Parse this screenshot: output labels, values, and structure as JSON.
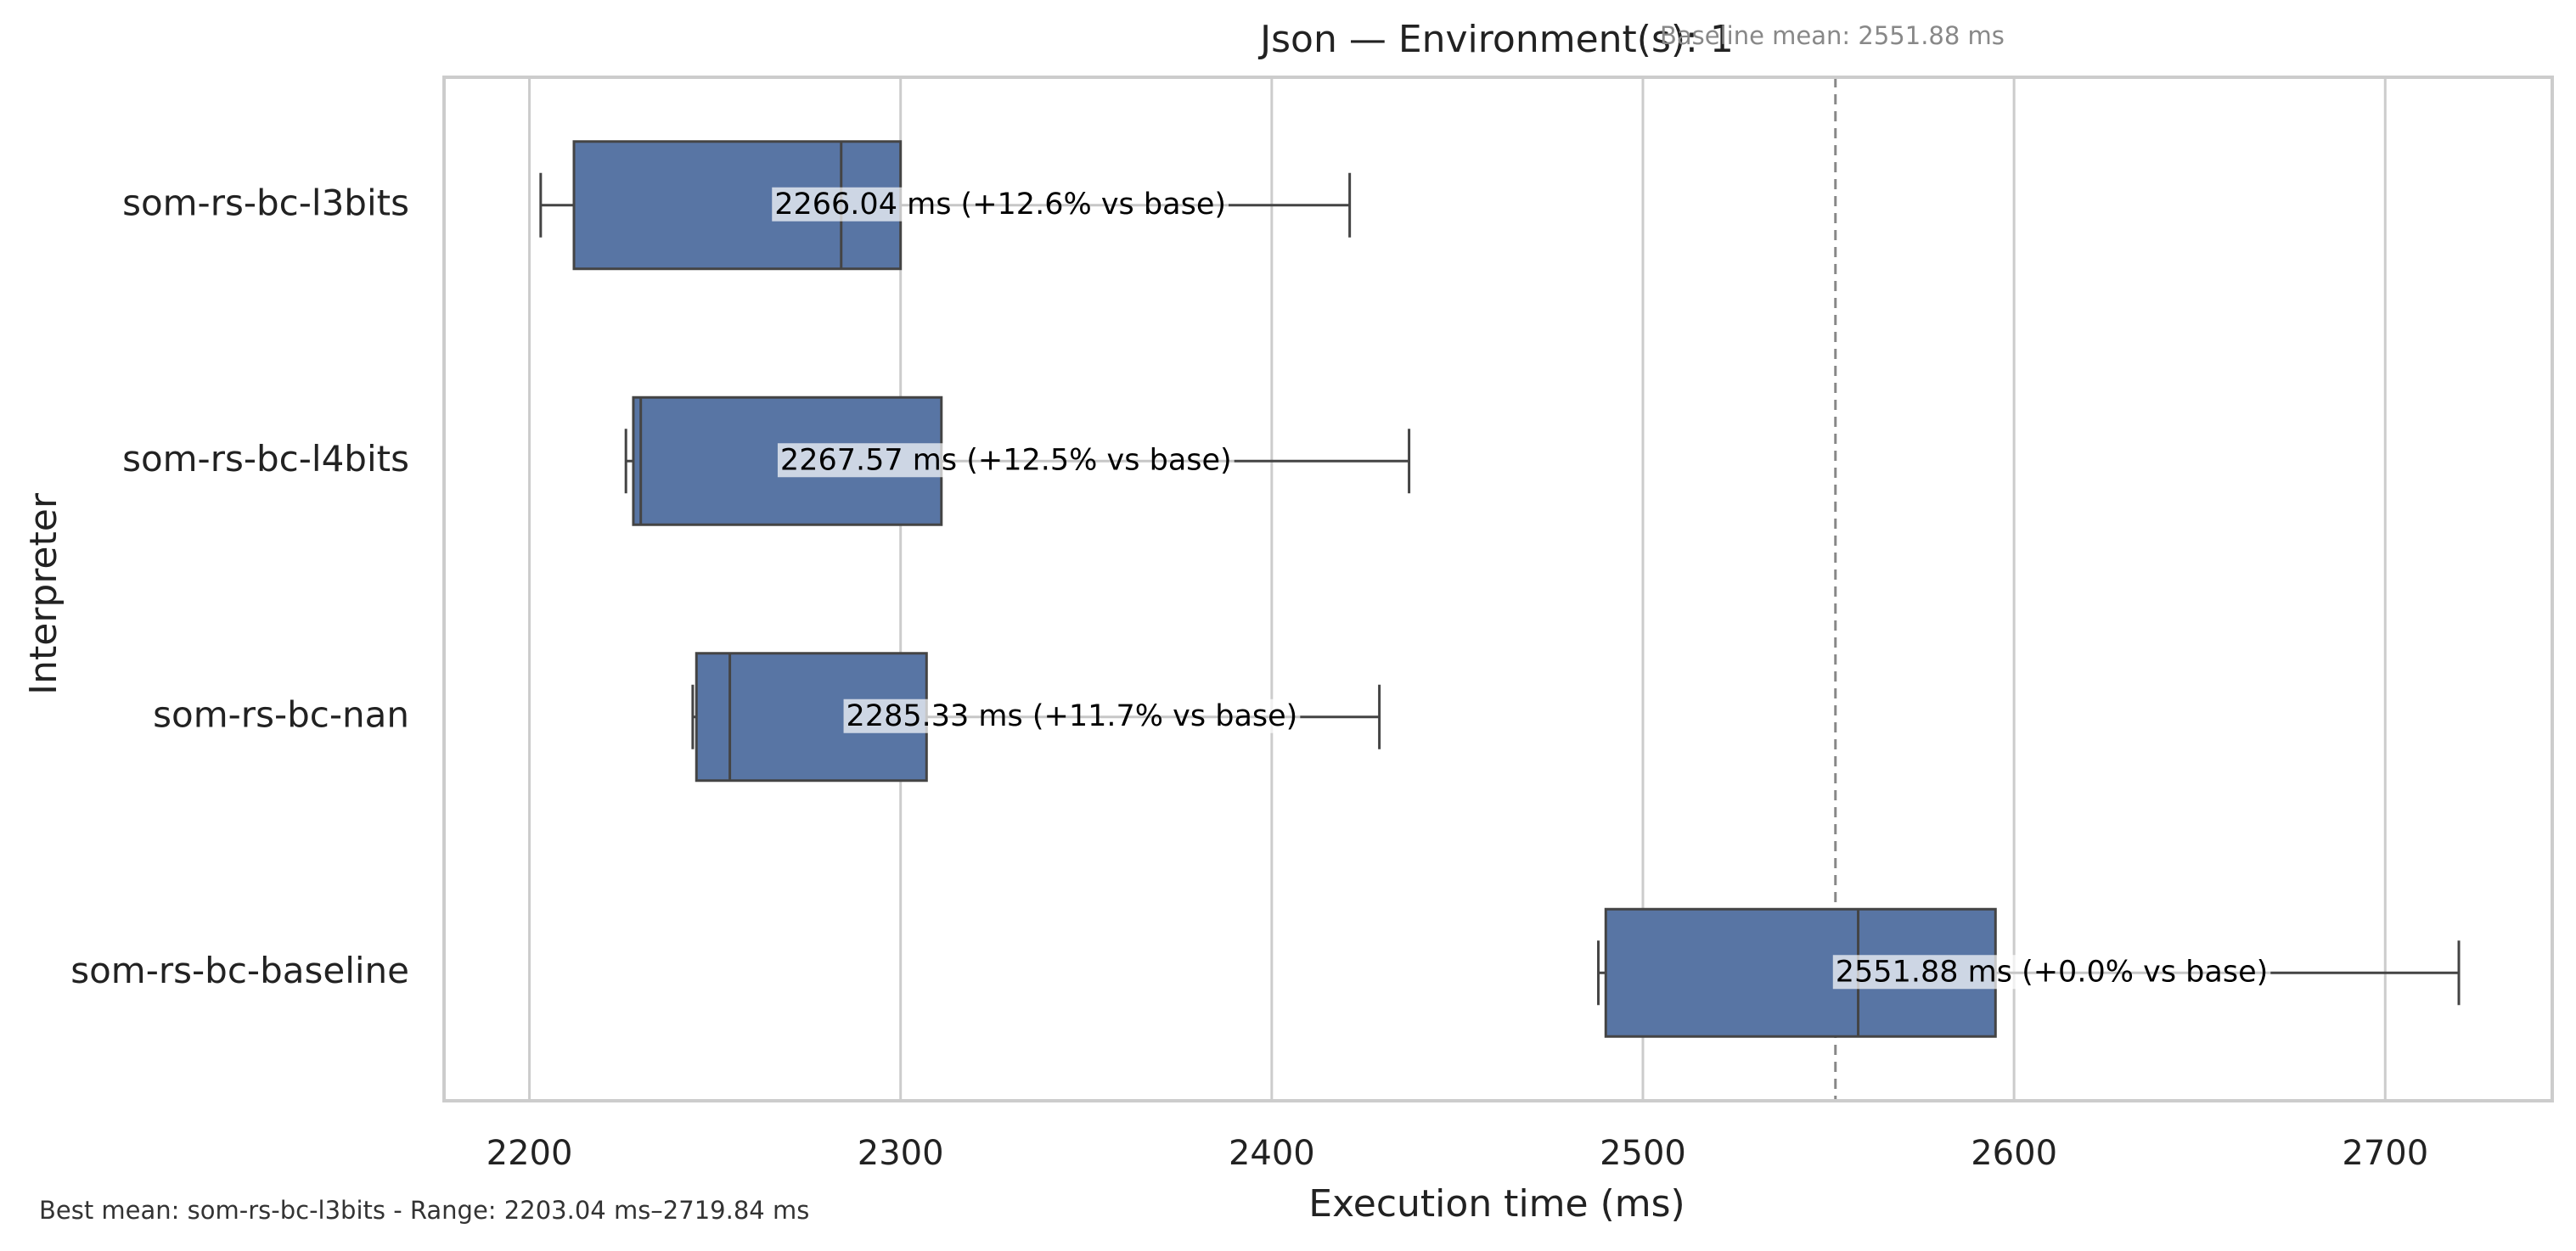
{
  "chart_data": {
    "type": "boxplot",
    "orientation": "horizontal",
    "title": "Json — Environment(s): 1",
    "xlabel": "Execution time (ms)",
    "ylabel": "Interpreter",
    "xlim": [
      2177,
      2745
    ],
    "xticks": [
      2200,
      2300,
      2400,
      2500,
      2600,
      2700
    ],
    "grid": "vertical",
    "categories": [
      "som-rs-bc-l3bits",
      "som-rs-bc-l4bits",
      "som-rs-bc-nan",
      "som-rs-bc-baseline"
    ],
    "boxes": [
      {
        "name": "som-rs-bc-l3bits",
        "whisker_low": 2203.04,
        "q1": 2212,
        "median": 2284,
        "q3": 2300,
        "whisker_high": 2421,
        "annotation": "2266.04 ms  (+12.6% vs base)"
      },
      {
        "name": "som-rs-bc-l4bits",
        "whisker_low": 2226,
        "q1": 2228,
        "median": 2230,
        "q3": 2311,
        "whisker_high": 2437,
        "annotation": "2267.57 ms  (+12.5% vs base)"
      },
      {
        "name": "som-rs-bc-nan",
        "whisker_low": 2244,
        "q1": 2245,
        "median": 2254,
        "q3": 2307,
        "whisker_high": 2429,
        "annotation": "2285.33 ms  (+11.7% vs base)"
      },
      {
        "name": "som-rs-bc-baseline",
        "whisker_low": 2488,
        "q1": 2490,
        "median": 2558,
        "q3": 2595,
        "whisker_high": 2719.84,
        "annotation": "2551.88 ms  (+0.0% vs base)"
      }
    ],
    "annotation_x": [
      2266.04,
      2267.57,
      2285.33,
      2551.88
    ],
    "baseline": {
      "value": 2551.88,
      "label": "Baseline mean: 2551.88 ms"
    },
    "footer": "Best mean: som-rs-bc-l3bits - Range: 2203.04 ms–2719.84 ms",
    "colors": {
      "box": "#5875a4",
      "edge": "#444444",
      "grid": "#cccccc",
      "spine": "#cccccc",
      "baseline": "#888888",
      "label_bg": "#ffffff"
    }
  }
}
